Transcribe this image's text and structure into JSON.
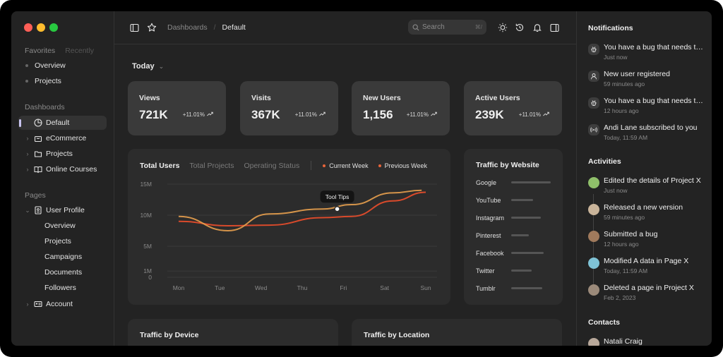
{
  "window": {
    "controls": [
      "close",
      "minimize",
      "maximize"
    ],
    "colors": {
      "close": "#ff5f57",
      "minimize": "#febc2e",
      "maximize": "#28c840"
    }
  },
  "sidebar": {
    "tabs": [
      "Favorites",
      "Recently"
    ],
    "favorites": [
      "Overview",
      "Projects"
    ],
    "dashboards_heading": "Dashboards",
    "dashboards": [
      {
        "label": "Default",
        "icon": "pie-chart-icon",
        "active": true
      },
      {
        "label": "eCommerce",
        "icon": "shopping-bag-icon"
      },
      {
        "label": "Projects",
        "icon": "folder-icon"
      },
      {
        "label": "Online Courses",
        "icon": "book-icon"
      }
    ],
    "pages_heading": "Pages",
    "user_profile": {
      "label": "User Profile",
      "icon": "id-card-icon",
      "children": [
        "Overview",
        "Projects",
        "Campaigns",
        "Documents",
        "Followers"
      ]
    },
    "account": {
      "label": "Account",
      "icon": "address-card-icon"
    }
  },
  "topbar": {
    "breadcrumb": [
      "Dashboards",
      "Default"
    ],
    "separator": "/",
    "search_placeholder": "Search",
    "search_shortcut": "⌘/",
    "icons": [
      "sidebar-toggle-icon",
      "star-icon",
      "sun-icon",
      "history-icon",
      "bell-icon",
      "panel-right-icon"
    ]
  },
  "main": {
    "period": "Today",
    "stats": [
      {
        "label": "Views",
        "value": "721K",
        "change": "+11.01%"
      },
      {
        "label": "Visits",
        "value": "367K",
        "change": "+11.01%"
      },
      {
        "label": "New Users",
        "value": "1,156",
        "change": "+11.01%"
      },
      {
        "label": "Active Users",
        "value": "239K",
        "change": "+11.01%"
      }
    ],
    "chart_tabs": [
      "Total Users",
      "Total Projects",
      "Operating Status"
    ],
    "tooltip": "Tool Tips",
    "traffic_by_website": {
      "title": "Traffic by Website",
      "sites": [
        {
          "name": "Google",
          "share": 1.0
        },
        {
          "name": "YouTube",
          "share": 0.55
        },
        {
          "name": "Instagram",
          "share": 0.75
        },
        {
          "name": "Pinterest",
          "share": 0.45
        },
        {
          "name": "Facebook",
          "share": 0.82
        },
        {
          "name": "Twitter",
          "share": 0.52
        },
        {
          "name": "Tumblr",
          "share": 0.78
        }
      ]
    },
    "bottom_cards": [
      "Traffic by Device",
      "Traffic by Location"
    ]
  },
  "chart_data": {
    "type": "line",
    "x": [
      "Mon",
      "Tue",
      "Wed",
      "Thu",
      "Fri",
      "Sat",
      "Sun"
    ],
    "yticks": [
      "15M",
      "10M",
      "5M",
      "1M",
      "0"
    ],
    "ylim": [
      0,
      15
    ],
    "grid": true,
    "legend_position": "top",
    "series": [
      {
        "name": "Current Week",
        "color": "#e8a04e",
        "values": [
          9.8,
          7.5,
          10.2,
          11.0,
          11.7,
          13.6,
          14.0
        ],
        "x_positions": [
          0.0,
          1.2,
          2.2,
          3.5,
          4.2,
          5.2,
          5.9
        ]
      },
      {
        "name": "Previous Week",
        "color": "#d94a2b",
        "values": [
          9.0,
          8.3,
          8.4,
          9.6,
          9.8,
          12.3,
          13.7
        ],
        "x_positions": [
          0.0,
          1.2,
          2.2,
          3.5,
          4.2,
          5.2,
          6.0
        ]
      }
    ],
    "tooltip_point": {
      "x": "Fri",
      "y": 11.0
    }
  },
  "right_panel": {
    "notifications_heading": "Notifications",
    "notifications": [
      {
        "text": "You have a bug that needs to be fixed",
        "time": "Just now",
        "icon": "bug-icon"
      },
      {
        "text": "New user registered",
        "time": "59 minutes ago",
        "icon": "user-icon"
      },
      {
        "text": "You have a bug that needs to be fixed",
        "time": "12 hours ago",
        "icon": "bug-icon"
      },
      {
        "text": "Andi Lane subscribed to you",
        "time": "Today, 11:59 AM",
        "icon": "broadcast-icon"
      }
    ],
    "activities_heading": "Activities",
    "activities": [
      {
        "text": "Edited the details of Project X",
        "time": "Just now",
        "avatar_color": "#8fbf6a"
      },
      {
        "text": "Released a new version",
        "time": "59 minutes ago",
        "avatar_color": "#c9b49a"
      },
      {
        "text": "Submitted a bug",
        "time": "12 hours ago",
        "avatar_color": "#a07a5c"
      },
      {
        "text": "Modified A data in Page X",
        "time": "Today, 11:59 AM",
        "avatar_color": "#7fc3d6"
      },
      {
        "text": "Deleted a page in Project X",
        "time": "Feb 2, 2023",
        "avatar_color": "#9b8a7a"
      }
    ],
    "contacts_heading": "Contacts",
    "contacts": [
      {
        "name": "Natali Craig",
        "avatar_color": "#b8a89a"
      }
    ]
  }
}
